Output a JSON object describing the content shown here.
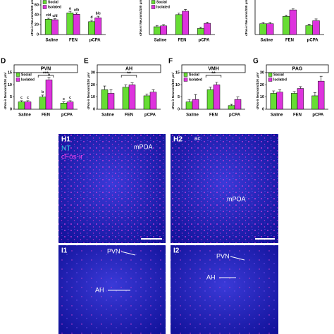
{
  "chart_data": [
    {
      "type": "bar",
      "ylabel": "cFos-ir Neurons/100 μm²",
      "categories": [
        "Saline",
        "FEN",
        "pCPA"
      ],
      "series": [
        {
          "name": "Social",
          "color": "#66dd33",
          "values": [
            31,
            44,
            26
          ],
          "errors": [
            2,
            3,
            3
          ],
          "labels": [
            "c/d",
            "a",
            "d"
          ]
        },
        {
          "name": "Isolated",
          "color": "#dd33dd",
          "values": [
            30,
            41,
            34
          ],
          "errors": [
            2,
            3,
            3
          ],
          "labels": [
            "c/d",
            "a/b",
            "b/c"
          ]
        }
      ],
      "ylim": [
        0,
        70
      ],
      "yticks": [
        0,
        20,
        40,
        60
      ],
      "legend": true
    },
    {
      "type": "bar",
      "ylabel": "cFos-ir Neurons/100 μm²",
      "categories": [
        "Saline",
        "FEN",
        "pCPA"
      ],
      "series": [
        {
          "name": "Social",
          "color": "#66dd33",
          "values": [
            9,
            23,
            7
          ],
          "errors": [
            1.5,
            2,
            1.5
          ]
        },
        {
          "name": "Isolated",
          "color": "#dd33dd",
          "values": [
            10,
            27,
            13
          ],
          "errors": [
            1.5,
            2,
            1.5
          ]
        }
      ],
      "ylim": [
        0,
        40
      ],
      "legend": true
    },
    {
      "type": "bar",
      "ylabel": "cFos-ir Neurons/100 μm²",
      "categories": [
        "Saline",
        "FEN",
        "pCPA"
      ],
      "series": [
        {
          "name": "Social",
          "color": "#66dd33",
          "values": [
            25,
            42,
            21
          ],
          "errors": [
            3,
            3,
            3
          ]
        },
        {
          "name": "Isolated",
          "color": "#dd33dd",
          "values": [
            25,
            57,
            32
          ],
          "errors": [
            3,
            3,
            4
          ]
        }
      ],
      "ylim": [
        0,
        80
      ]
    },
    {
      "type": "bar",
      "letter": "D",
      "title": "PVN",
      "ylabel": "cFos-ir Neurons/100 μm²",
      "categories": [
        "Saline",
        "FEN",
        "pCPA"
      ],
      "series": [
        {
          "name": "Social",
          "color": "#66dd33",
          "values": [
            3,
            5,
            2.5
          ],
          "errors": [
            0.5,
            0.8,
            0.5
          ],
          "labels": [
            "c",
            "b",
            "c"
          ]
        },
        {
          "name": "Isolated",
          "color": "#dd33dd",
          "values": [
            3,
            12,
            3
          ],
          "errors": [
            0.5,
            1,
            0.5
          ],
          "labels": [
            "c",
            "a",
            "c"
          ]
        }
      ],
      "ylim": [
        0,
        15
      ],
      "yticks": [
        0,
        5,
        10,
        15
      ],
      "legend": true,
      "annotations": [
        {
          "text": "***",
          "category": "FEN"
        }
      ]
    },
    {
      "type": "bar",
      "letter": "E",
      "title": "AH",
      "ylabel": "cFos-ir Neurons/100 μm²",
      "categories": [
        "Saline",
        "FEN",
        "pCPA"
      ],
      "series": [
        {
          "name": "Social",
          "color": "#66dd33",
          "values": [
            16,
            18,
            11
          ],
          "errors": [
            3,
            2,
            1.5
          ]
        },
        {
          "name": "Isolated",
          "color": "#dd33dd",
          "values": [
            13,
            20,
            14
          ],
          "errors": [
            3,
            1.5,
            2
          ]
        }
      ],
      "ylim": [
        0,
        30
      ],
      "yticks": [
        0,
        10,
        20,
        30
      ],
      "annotations": [
        {
          "text": "**",
          "category": "FEN"
        }
      ]
    },
    {
      "type": "bar",
      "letter": "F",
      "title": "VMH",
      "ylabel": "cFos-ir Neurons/100 μm²",
      "categories": [
        "Saline",
        "FEN",
        "pCPA"
      ],
      "series": [
        {
          "name": "Social",
          "color": "#66dd33",
          "values": [
            3,
            8,
            1.5
          ],
          "errors": [
            1,
            1,
            0.5
          ]
        },
        {
          "name": "Isolated",
          "color": "#dd33dd",
          "values": [
            4,
            10,
            4
          ],
          "errors": [
            2,
            1,
            1
          ]
        }
      ],
      "ylim": [
        0,
        15
      ],
      "yticks": [
        0,
        5,
        10,
        15
      ],
      "legend": true,
      "annotations": [
        {
          "text": "**",
          "category": "FEN"
        }
      ]
    },
    {
      "type": "bar",
      "letter": "G",
      "title": "PAG",
      "ylabel": "cFos-ir Neurons/100 μm²",
      "categories": [
        "Saline",
        "FEN",
        "pCPA"
      ],
      "series": [
        {
          "name": "Social",
          "color": "#66dd33",
          "values": [
            13,
            13,
            11
          ],
          "errors": [
            2,
            1.5,
            2.5
          ]
        },
        {
          "name": "Isolated",
          "color": "#dd33dd",
          "values": [
            14,
            17,
            23
          ],
          "errors": [
            2,
            1.5,
            4
          ]
        }
      ],
      "ylim": [
        0,
        30
      ],
      "yticks": [
        0,
        10,
        20,
        30
      ],
      "legend": true
    }
  ],
  "images": [
    {
      "label": "H1",
      "channels": [
        "NT",
        "cFos-ir"
      ],
      "region": "mPOA"
    },
    {
      "label": "H2",
      "landmark": "ac",
      "region": "mPOA"
    },
    {
      "label": "I1",
      "regions": [
        "PVN",
        "AH"
      ]
    },
    {
      "label": "I2",
      "regions": [
        "PVN",
        "AH"
      ]
    }
  ]
}
